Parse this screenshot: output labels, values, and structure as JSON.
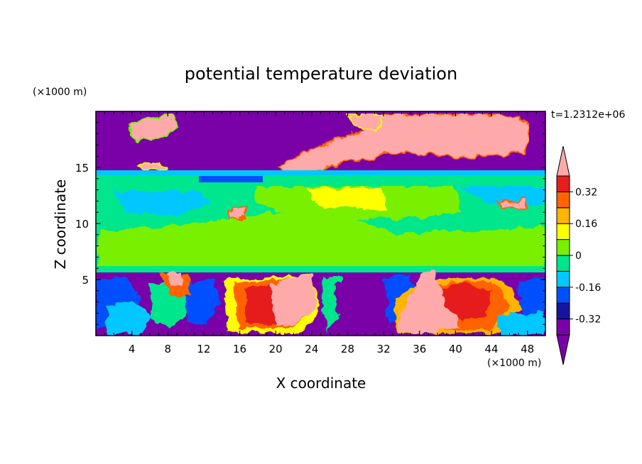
{
  "chart_data": {
    "type": "heatmap",
    "title": "potential temperature deviation",
    "xlabel": "X coordinate",
    "ylabel": "Z coordinate",
    "x_unit": "(×1000 m)",
    "y_unit": "(×1000 m)",
    "time_label": "t=1.2312e+06",
    "xlim": [
      0,
      50
    ],
    "ylim": [
      0,
      20
    ],
    "x_ticks": [
      4,
      8,
      12,
      16,
      20,
      24,
      28,
      32,
      36,
      40,
      44,
      48
    ],
    "y_ticks": [
      5,
      10,
      15
    ],
    "colorbar": {
      "levels": [
        -0.4,
        -0.32,
        -0.24,
        -0.16,
        -0.08,
        0,
        0.08,
        0.16,
        0.24,
        0.32,
        0.4
      ],
      "labels": [
        "0.32",
        "0.16",
        "0",
        "-0.16",
        "-0.32"
      ],
      "label_values": [
        0.32,
        0.16,
        0,
        -0.16,
        -0.32
      ],
      "colors": [
        "#7a00a8",
        "#1414a0",
        "#0050ff",
        "#00c8ff",
        "#00e68c",
        "#78f000",
        "#ffff00",
        "#ffb400",
        "#ff6400",
        "#e61e1e",
        "#ffaaaa"
      ]
    },
    "grid": false,
    "legend": "colorbar-right"
  }
}
